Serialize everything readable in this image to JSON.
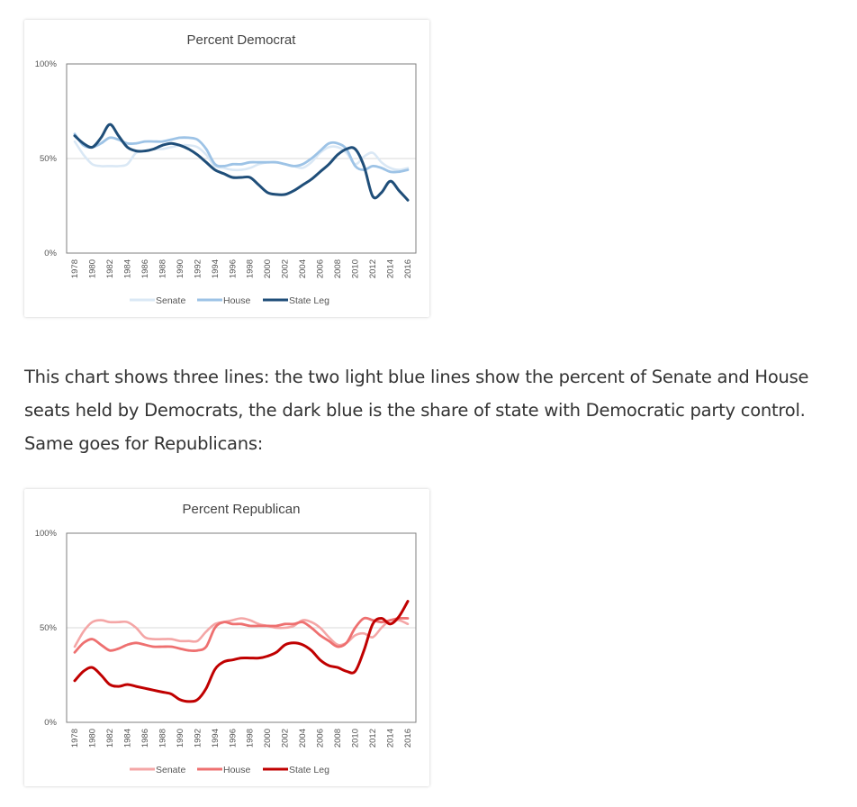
{
  "chart_data": [
    {
      "type": "line",
      "title": "Percent Democrat",
      "xlabel": "",
      "ylabel": "",
      "x": [
        1978,
        1979,
        1980,
        1981,
        1982,
        1983,
        1984,
        1985,
        1986,
        1987,
        1988,
        1989,
        1990,
        1991,
        1992,
        1993,
        1994,
        1995,
        1996,
        1997,
        1998,
        1999,
        2000,
        2001,
        2002,
        2003,
        2004,
        2005,
        2006,
        2007,
        2008,
        2009,
        2010,
        2011,
        2012,
        2013,
        2014,
        2015,
        2016
      ],
      "x_ticks": [
        "1978",
        "1980",
        "1982",
        "1984",
        "1986",
        "1988",
        "1990",
        "1992",
        "1994",
        "1996",
        "1998",
        "2000",
        "2002",
        "2004",
        "2006",
        "2008",
        "2010",
        "2012",
        "2014",
        "2016"
      ],
      "y_ticks": [
        "0%",
        "50%",
        "100%"
      ],
      "ylim": [
        0,
        100
      ],
      "grid": "horizontal",
      "legend_position": "bottom",
      "series": [
        {
          "name": "Senate",
          "color": "#dae8f5",
          "width": 2.6,
          "values": [
            59,
            52,
            47,
            46,
            46,
            46,
            47,
            53,
            54,
            55,
            55,
            56,
            57,
            57,
            56,
            52,
            46,
            45,
            44,
            44,
            45,
            47,
            48,
            48,
            47,
            46,
            45,
            48,
            53,
            56,
            56,
            53,
            47,
            51,
            53,
            48,
            45,
            44,
            45
          ]
        },
        {
          "name": "House",
          "color": "#9dc3e6",
          "width": 2.8,
          "values": [
            63,
            57,
            56,
            58,
            61,
            60,
            58,
            58,
            59,
            59,
            59,
            60,
            61,
            61,
            60,
            55,
            47,
            46,
            47,
            47,
            48,
            48,
            48,
            48,
            47,
            46,
            47,
            50,
            54,
            58,
            58,
            55,
            46,
            44,
            46,
            45,
            43,
            43,
            44
          ]
        },
        {
          "name": "State Leg",
          "color": "#1f4e79",
          "width": 3,
          "values": [
            62,
            58,
            56,
            61,
            68,
            62,
            56,
            54,
            54,
            55,
            57,
            58,
            57,
            55,
            52,
            48,
            44,
            42,
            40,
            40,
            40,
            36,
            32,
            31,
            31,
            33,
            36,
            39,
            43,
            47,
            52,
            55,
            55,
            46,
            30,
            32,
            38,
            33,
            28
          ]
        }
      ]
    },
    {
      "type": "line",
      "title": "Percent Republican",
      "xlabel": "",
      "ylabel": "",
      "x": [
        1978,
        1979,
        1980,
        1981,
        1982,
        1983,
        1984,
        1985,
        1986,
        1987,
        1988,
        1989,
        1990,
        1991,
        1992,
        1993,
        1994,
        1995,
        1996,
        1997,
        1998,
        1999,
        2000,
        2001,
        2002,
        2003,
        2004,
        2005,
        2006,
        2007,
        2008,
        2009,
        2010,
        2011,
        2012,
        2013,
        2014,
        2015,
        2016
      ],
      "x_ticks": [
        "1978",
        "1980",
        "1982",
        "1984",
        "1986",
        "1988",
        "1990",
        "1992",
        "1994",
        "1996",
        "1998",
        "2000",
        "2002",
        "2004",
        "2006",
        "2008",
        "2010",
        "2012",
        "2014",
        "2016"
      ],
      "y_ticks": [
        "0%",
        "50%",
        "100%"
      ],
      "ylim": [
        0,
        100
      ],
      "grid": "horizontal",
      "legend_position": "bottom",
      "series": [
        {
          "name": "Senate",
          "color": "#f4a6a6",
          "width": 2.6,
          "values": [
            40,
            48,
            53,
            54,
            53,
            53,
            53,
            50,
            45,
            44,
            44,
            44,
            43,
            43,
            43,
            48,
            52,
            53,
            54,
            55,
            54,
            52,
            51,
            50,
            50,
            51,
            54,
            53,
            50,
            45,
            41,
            42,
            46,
            47,
            45,
            50,
            54,
            54,
            52
          ]
        },
        {
          "name": "House",
          "color": "#ee7070",
          "width": 2.8,
          "values": [
            37,
            42,
            44,
            41,
            38,
            39,
            41,
            42,
            41,
            40,
            40,
            40,
            39,
            38,
            38,
            40,
            50,
            53,
            52,
            52,
            51,
            51,
            51,
            51,
            52,
            52,
            53,
            50,
            46,
            43,
            40,
            42,
            50,
            55,
            54,
            53,
            54,
            55,
            55
          ]
        },
        {
          "name": "State Leg",
          "color": "#c00000",
          "width": 3,
          "values": [
            22,
            27,
            29,
            25,
            20,
            19,
            20,
            19,
            18,
            17,
            16,
            15,
            12,
            11,
            12,
            18,
            28,
            32,
            33,
            34,
            34,
            34,
            35,
            37,
            41,
            42,
            41,
            38,
            33,
            30,
            29,
            27,
            27,
            38,
            52,
            55,
            52,
            56,
            64
          ]
        }
      ]
    }
  ],
  "paragraph": {
    "line1": "This chart shows three lines: the two light blue lines show the percent of Senate and House",
    "line2": "seats held by Democrats, the dark blue is the share of state with Democratic party control.",
    "line3": "Same goes for Republicans:"
  }
}
